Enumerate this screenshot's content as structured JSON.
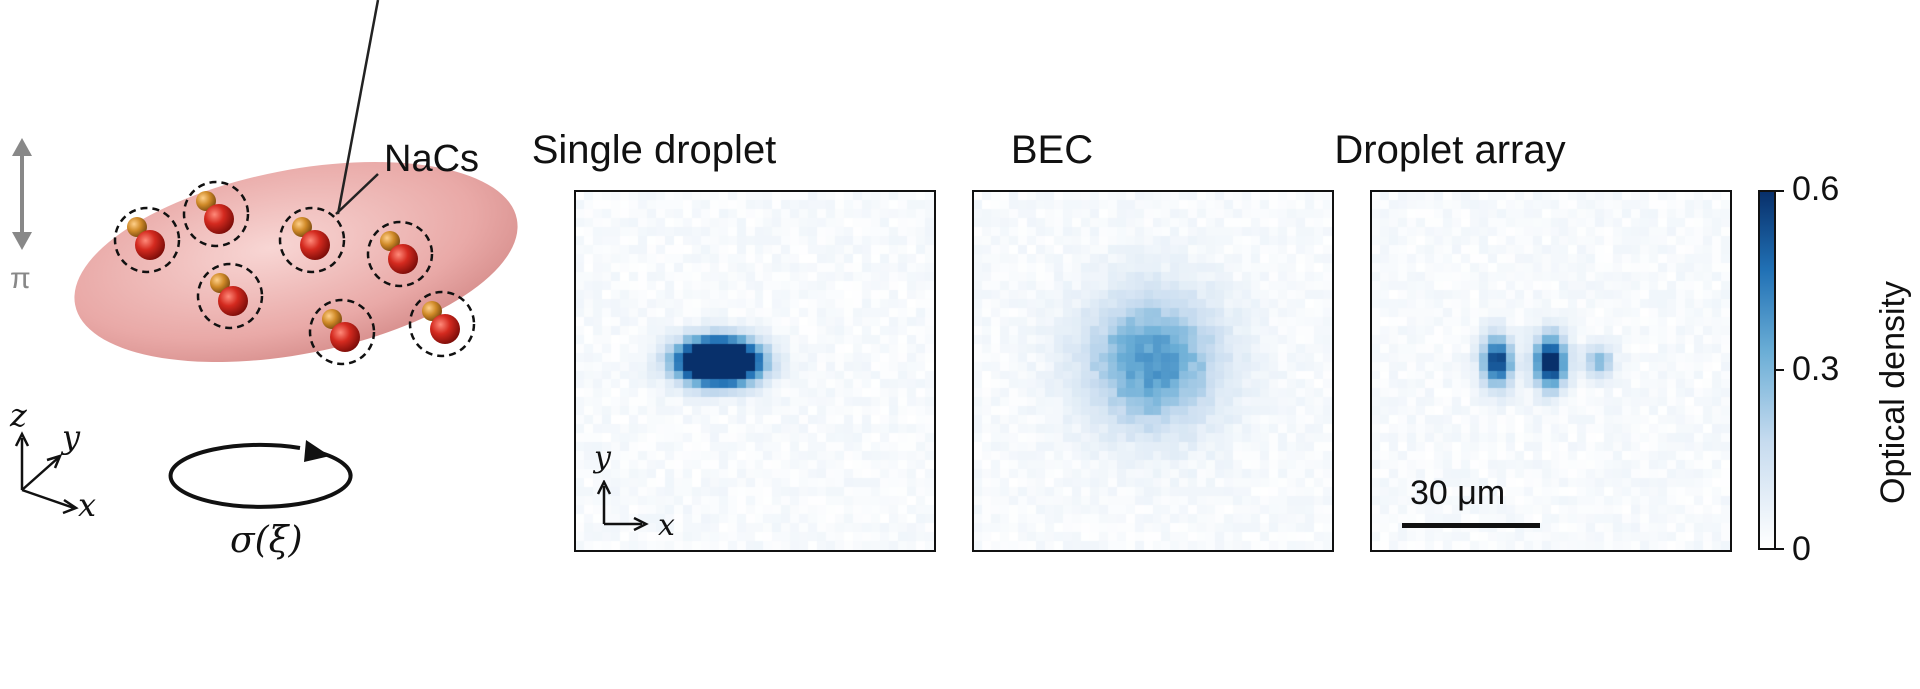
{
  "schematic": {
    "molecule_label": "NaCs",
    "pi_label": "π",
    "sigma_label": "σ(ξ)",
    "axes": {
      "z": "z",
      "y": "y",
      "x": "x"
    },
    "ellipsoid_color": "#e8a4a4",
    "atom_large_color": "#c8201c",
    "atom_small_color": "#d08a28"
  },
  "panels": [
    {
      "title": "Single droplet",
      "type": "single_droplet"
    },
    {
      "title": "BEC",
      "type": "bec"
    },
    {
      "title": "Droplet array",
      "type": "droplet_array"
    }
  ],
  "panel_axes": {
    "y": "y",
    "x": "x"
  },
  "scale_bar": {
    "label": "30 μm"
  },
  "colorbar": {
    "label": "Optical density",
    "ticks": [
      "0.6",
      "0.3",
      "0"
    ],
    "range": [
      0,
      0.6
    ],
    "colormap_low": "#ffffff",
    "colormap_high": "#08306b"
  }
}
